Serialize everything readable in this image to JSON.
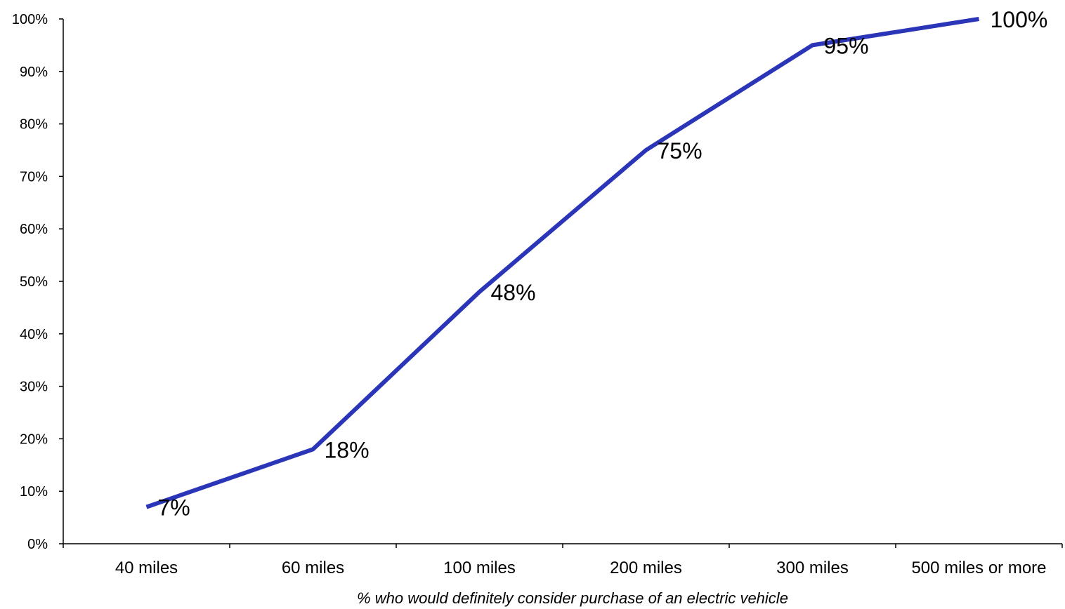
{
  "chart_data": {
    "type": "line",
    "categories": [
      "40 miles",
      "60 miles",
      "100 miles",
      "200 miles",
      "300 miles",
      "500 miles or more"
    ],
    "series": [
      {
        "values": [
          7,
          18,
          48,
          75,
          95,
          100
        ]
      }
    ],
    "data_labels": [
      "7%",
      "18%",
      "48%",
      "75%",
      "95%",
      "100%"
    ],
    "title": "",
    "xlabel": "% who would definitely consider purchase of an electric vehicle",
    "ylabel": "",
    "ylim": [
      0,
      100
    ],
    "y_ticks": [
      0,
      10,
      20,
      30,
      40,
      50,
      60,
      70,
      80,
      90,
      100
    ],
    "y_tick_labels": [
      "0%",
      "10%",
      "20%",
      "30%",
      "40%",
      "50%",
      "60%",
      "70%",
      "80%",
      "90%",
      "100%"
    ],
    "grid": false,
    "legend": "none",
    "colors": {
      "line": "#2b35b8",
      "axis": "#000000",
      "text": "#000000"
    }
  }
}
